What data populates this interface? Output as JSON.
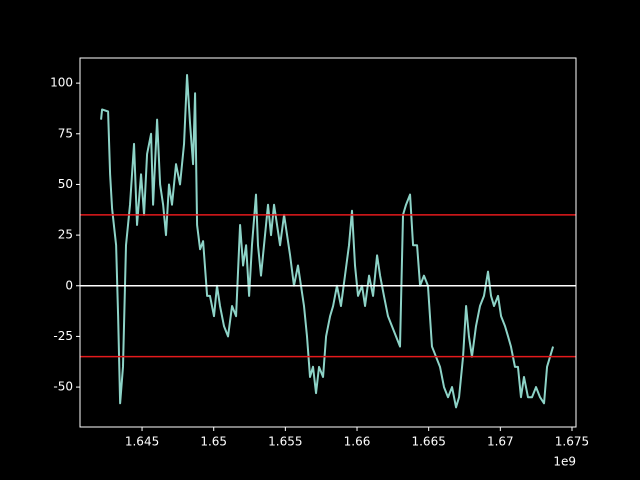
{
  "chart_data": {
    "type": "line",
    "x_offset_text": "1e9",
    "xlim": [
      1.64067,
      1.67528
    ],
    "ylim": [
      -69.7,
      112.4
    ],
    "xticks": [
      1.645,
      1.65,
      1.655,
      1.66,
      1.665,
      1.67,
      1.675
    ],
    "yticks": [
      -50,
      -25,
      0,
      25,
      50,
      75,
      100
    ],
    "hlines": [
      {
        "y": 35,
        "color": "#e41a1c"
      },
      {
        "y": -35,
        "color": "#e41a1c"
      },
      {
        "y": 0,
        "color": "#ffffff"
      }
    ],
    "x": [
      1.64214,
      1.64221,
      1.64263,
      1.64277,
      1.64291,
      1.64319,
      1.64333,
      1.64347,
      1.64367,
      1.64388,
      1.64416,
      1.64444,
      1.64465,
      1.64493,
      1.64514,
      1.64535,
      1.64563,
      1.64577,
      1.64605,
      1.64626,
      1.64647,
      1.64667,
      1.64688,
      1.64709,
      1.64737,
      1.64765,
      1.64793,
      1.64814,
      1.64835,
      1.64856,
      1.6487,
      1.64884,
      1.64905,
      1.64926,
      1.64954,
      1.64974,
      1.65002,
      1.65023,
      1.65044,
      1.65072,
      1.651,
      1.65128,
      1.65156,
      1.65184,
      1.65205,
      1.65226,
      1.65247,
      1.65267,
      1.65295,
      1.65309,
      1.6533,
      1.65351,
      1.65379,
      1.654,
      1.65421,
      1.65442,
      1.65463,
      1.65491,
      1.65512,
      1.65533,
      1.6556,
      1.65588,
      1.65609,
      1.6563,
      1.65651,
      1.65672,
      1.65693,
      1.65714,
      1.65735,
      1.65763,
      1.65784,
      1.65812,
      1.65833,
      1.6586,
      1.65888,
      1.65916,
      1.65944,
      1.65965,
      1.65986,
      1.66007,
      1.66035,
      1.66056,
      1.66084,
      1.66112,
      1.6614,
      1.66161,
      1.66188,
      1.66216,
      1.66244,
      1.66272,
      1.663,
      1.66321,
      1.66342,
      1.6637,
      1.66391,
      1.66419,
      1.6644,
      1.66467,
      1.66495,
      1.66523,
      1.66551,
      1.66579,
      1.66607,
      1.66635,
      1.66663,
      1.66691,
      1.66712,
      1.6674,
      1.66761,
      1.66781,
      1.66802,
      1.6683,
      1.66858,
      1.66886,
      1.66914,
      1.66935,
      1.66956,
      1.66984,
      1.67005,
      1.67033,
      1.67054,
      1.67074,
      1.67102,
      1.67123,
      1.67144,
      1.67165,
      1.67193,
      1.67221,
      1.67249,
      1.67277,
      1.67305,
      1.67326,
      1.67347,
      1.67368
    ],
    "series": [
      {
        "color": "#8dd3c7",
        "values": [
          82,
          87,
          86,
          55,
          38,
          20,
          -15,
          -58,
          -40,
          20,
          40,
          70,
          30,
          55,
          35,
          65,
          75,
          40,
          82,
          50,
          40,
          25,
          50,
          40,
          60,
          50,
          70,
          104,
          80,
          60,
          95,
          30,
          18,
          22,
          -5,
          -5,
          -15,
          0,
          -10,
          -20,
          -25,
          -10,
          -15,
          30,
          10,
          20,
          -5,
          20,
          45,
          20,
          5,
          20,
          40,
          25,
          40,
          30,
          20,
          35,
          25,
          15,
          0,
          10,
          0,
          -10,
          -25,
          -45,
          -40,
          -53,
          -40,
          -45,
          -25,
          -15,
          -10,
          0,
          -10,
          5,
          20,
          37,
          10,
          -5,
          0,
          -10,
          5,
          -5,
          15,
          5,
          -5,
          -15,
          -20,
          -25,
          -30,
          35,
          40,
          45,
          20,
          20,
          0,
          5,
          0,
          -30,
          -35,
          -40,
          -50,
          -55,
          -50,
          -60,
          -55,
          -35,
          -10,
          -25,
          -35,
          -20,
          -10,
          -5,
          7,
          -5,
          -10,
          -5,
          -15,
          -20,
          -25,
          -30,
          -40,
          -40,
          -55,
          -45,
          -55,
          -55,
          -50,
          -55,
          -58,
          -40,
          -35,
          -30
        ]
      }
    ]
  }
}
